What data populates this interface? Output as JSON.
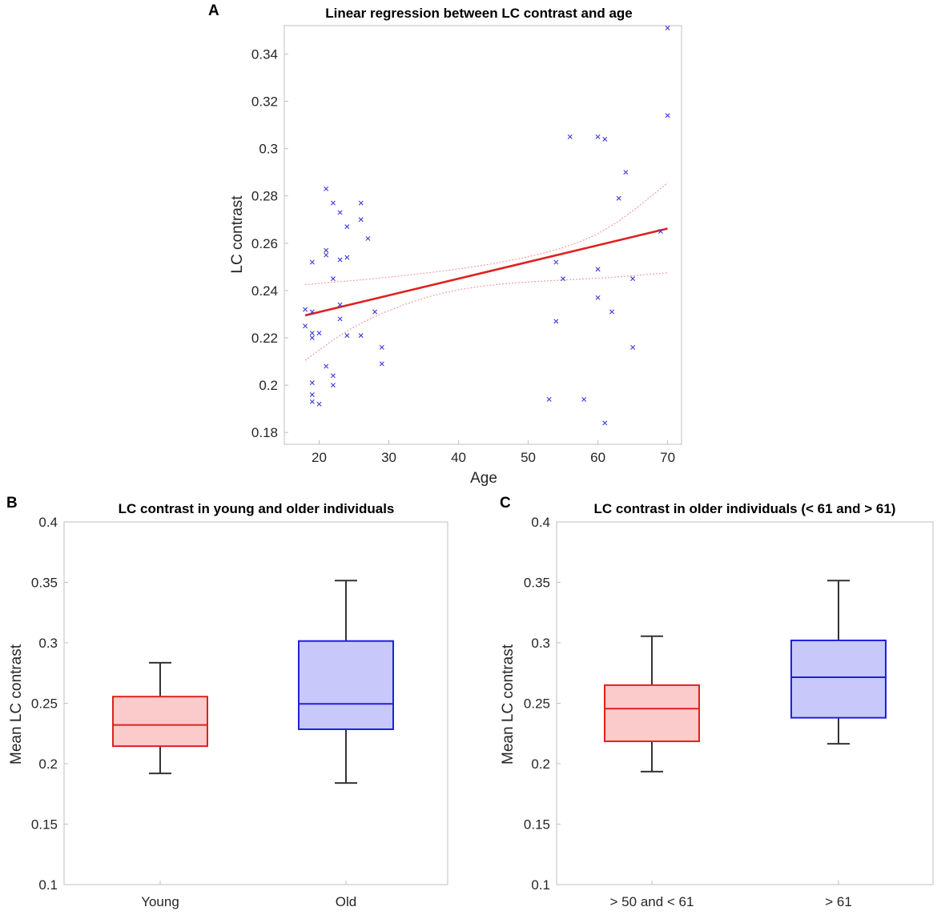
{
  "chart_data": [
    {
      "panel": "A",
      "type": "scatter",
      "title": "Linear regression between LC contrast and age",
      "xlabel": "Age",
      "ylabel": "LC contrast",
      "xlim": [
        15,
        72
      ],
      "ylim": [
        0.175,
        0.352
      ],
      "xticks": [
        20,
        30,
        40,
        50,
        60,
        70
      ],
      "yticks": [
        0.18,
        0.2,
        0.22,
        0.24,
        0.26,
        0.28,
        0.3,
        0.32,
        0.34
      ],
      "ytick_labels": [
        "0.18",
        "0.2",
        "0.22",
        "0.24",
        "0.26",
        "0.28",
        "0.3",
        "0.32",
        "0.34"
      ],
      "marker_color": "#3a3ae0",
      "fit_color": "#e02020",
      "ci_color": "#f0a0a0",
      "points": [
        [
          18,
          0.232
        ],
        [
          18,
          0.225
        ],
        [
          19,
          0.252
        ],
        [
          19,
          0.231
        ],
        [
          19,
          0.222
        ],
        [
          19,
          0.22
        ],
        [
          19,
          0.201
        ],
        [
          19,
          0.196
        ],
        [
          19,
          0.193
        ],
        [
          20,
          0.222
        ],
        [
          20,
          0.192
        ],
        [
          21,
          0.283
        ],
        [
          21,
          0.257
        ],
        [
          21,
          0.255
        ],
        [
          21,
          0.208
        ],
        [
          22,
          0.277
        ],
        [
          22,
          0.245
        ],
        [
          22,
          0.204
        ],
        [
          22,
          0.2
        ],
        [
          23,
          0.273
        ],
        [
          23,
          0.253
        ],
        [
          23,
          0.234
        ],
        [
          23,
          0.228
        ],
        [
          24,
          0.267
        ],
        [
          24,
          0.254
        ],
        [
          24,
          0.221
        ],
        [
          26,
          0.277
        ],
        [
          26,
          0.27
        ],
        [
          26,
          0.221
        ],
        [
          27,
          0.262
        ],
        [
          28,
          0.231
        ],
        [
          29,
          0.216
        ],
        [
          29,
          0.209
        ],
        [
          53,
          0.194
        ],
        [
          54,
          0.252
        ],
        [
          54,
          0.227
        ],
        [
          55,
          0.245
        ],
        [
          56,
          0.305
        ],
        [
          58,
          0.194
        ],
        [
          60,
          0.305
        ],
        [
          60,
          0.249
        ],
        [
          60,
          0.237
        ],
        [
          61,
          0.304
        ],
        [
          61,
          0.184
        ],
        [
          62,
          0.231
        ],
        [
          63,
          0.279
        ],
        [
          64,
          0.29
        ],
        [
          65,
          0.245
        ],
        [
          65,
          0.216
        ],
        [
          69,
          0.265
        ],
        [
          70,
          0.351
        ],
        [
          70,
          0.314
        ]
      ],
      "fit": {
        "x": [
          18,
          70
        ],
        "y": [
          0.2295,
          0.2662
        ]
      },
      "ci_upper": {
        "x": [
          18,
          30,
          44,
          55,
          62,
          70
        ],
        "y": [
          0.2425,
          0.2455,
          0.2505,
          0.2575,
          0.2665,
          0.2855
        ]
      },
      "ci_lower": {
        "x": [
          18,
          25,
          35,
          44,
          55,
          62,
          70
        ],
        "y": [
          0.2105,
          0.2255,
          0.2375,
          0.2425,
          0.2445,
          0.2455,
          0.2475
        ]
      }
    },
    {
      "panel": "B",
      "type": "box",
      "title": "LC contrast in young and older individuals",
      "xlabel": "",
      "ylabel": "Mean LC contrast",
      "ylim": [
        0.1,
        0.4
      ],
      "yticks": [
        0.1,
        0.15,
        0.2,
        0.25,
        0.3,
        0.35,
        0.4
      ],
      "ytick_labels": [
        "0.1",
        "0.15",
        "0.2",
        "0.25",
        "0.3",
        "0.35",
        "0.4"
      ],
      "categories": [
        "Young",
        "Old"
      ],
      "boxes": [
        {
          "name": "Young",
          "min": 0.192,
          "q1": 0.2145,
          "median": 0.232,
          "q3": 0.2555,
          "max": 0.2835,
          "color": "#e02020",
          "fill": "#fbcaca"
        },
        {
          "name": "Old",
          "min": 0.184,
          "q1": 0.2285,
          "median": 0.2495,
          "q3": 0.3015,
          "max": 0.3515,
          "color": "#2020e0",
          "fill": "#c8c8fb"
        }
      ]
    },
    {
      "panel": "C",
      "type": "box",
      "title": "LC contrast in older individuals (< 61 and > 61)",
      "xlabel": "",
      "ylabel": "Mean LC contrast",
      "ylim": [
        0.1,
        0.4
      ],
      "yticks": [
        0.1,
        0.15,
        0.2,
        0.25,
        0.3,
        0.35,
        0.4
      ],
      "ytick_labels": [
        "0.1",
        "0.15",
        "0.2",
        "0.25",
        "0.3",
        "0.35",
        "0.4"
      ],
      "categories": [
        "> 50 and < 61",
        "> 61"
      ],
      "boxes": [
        {
          "name": "> 50 and < 61",
          "min": 0.1935,
          "q1": 0.2185,
          "median": 0.2455,
          "q3": 0.265,
          "max": 0.3055,
          "color": "#e02020",
          "fill": "#fbcaca"
        },
        {
          "name": "> 61",
          "min": 0.2165,
          "q1": 0.238,
          "median": 0.2715,
          "q3": 0.302,
          "max": 0.3515,
          "color": "#2020e0",
          "fill": "#c8c8fb"
        }
      ]
    }
  ]
}
